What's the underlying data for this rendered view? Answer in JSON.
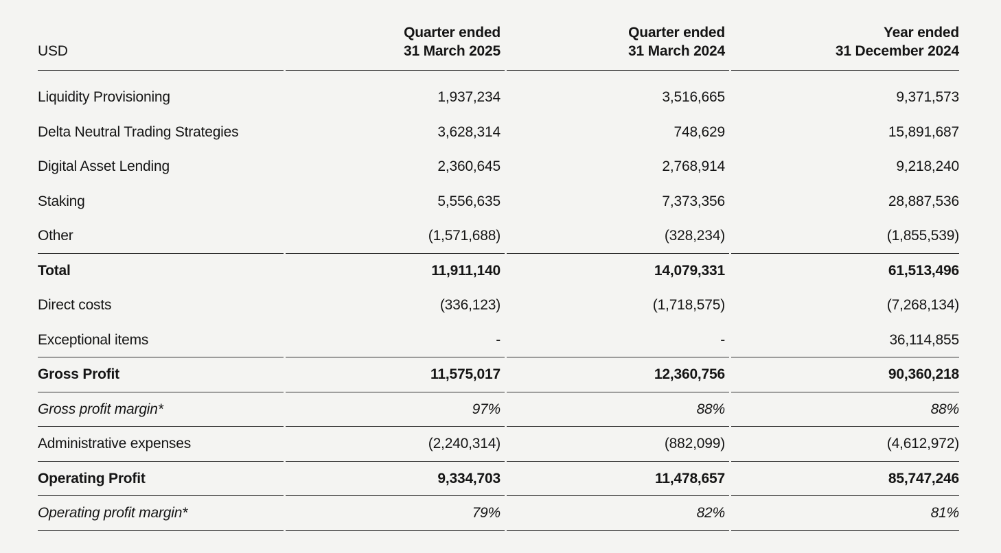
{
  "page": {
    "background_color": "#f4f4f2",
    "text_color": "#151515",
    "rule_color": "#2e2e2e"
  },
  "table": {
    "unit_label": "USD",
    "columns": [
      {
        "line1": "Quarter ended",
        "line2": "31 March 2025"
      },
      {
        "line1": "Quarter ended",
        "line2": "31 March 2024"
      },
      {
        "line1": "Year ended",
        "line2": "31 December 2024"
      }
    ],
    "rows": [
      {
        "label": "Liquidity Provisioning",
        "values": [
          "1,937,234",
          "3,516,665",
          "9,371,573"
        ],
        "style": "normal",
        "rule_below": false
      },
      {
        "label": "Delta Neutral Trading Strategies",
        "values": [
          "3,628,314",
          "748,629",
          "15,891,687"
        ],
        "style": "normal",
        "rule_below": false
      },
      {
        "label": "Digital Asset Lending",
        "values": [
          "2,360,645",
          "2,768,914",
          "9,218,240"
        ],
        "style": "normal",
        "rule_below": false
      },
      {
        "label": "Staking",
        "values": [
          "5,556,635",
          "7,373,356",
          "28,887,536"
        ],
        "style": "normal",
        "rule_below": false
      },
      {
        "label": "Other",
        "values": [
          "(1,571,688)",
          "(328,234)",
          "(1,855,539)"
        ],
        "style": "normal",
        "rule_below": true
      },
      {
        "label": "Total",
        "values": [
          "11,911,140",
          "14,079,331",
          "61,513,496"
        ],
        "style": "bold",
        "rule_below": false
      },
      {
        "label": "Direct costs",
        "values": [
          "(336,123)",
          "(1,718,575)",
          "(7,268,134)"
        ],
        "style": "normal",
        "rule_below": false
      },
      {
        "label": "Exceptional items",
        "values": [
          "-",
          "-",
          "36,114,855"
        ],
        "style": "normal",
        "rule_below": true
      },
      {
        "label": "Gross Profit",
        "values": [
          "11,575,017",
          "12,360,756",
          "90,360,218"
        ],
        "style": "bold",
        "rule_below": true
      },
      {
        "label": "Gross profit margin*",
        "values": [
          "97%",
          "88%",
          "88%"
        ],
        "style": "italic",
        "rule_below": true
      },
      {
        "label": "Administrative expenses",
        "values": [
          "(2,240,314)",
          "(882,099)",
          "(4,612,972)"
        ],
        "style": "normal",
        "rule_below": true
      },
      {
        "label": "Operating Profit",
        "values": [
          "9,334,703",
          "11,478,657",
          "85,747,246"
        ],
        "style": "bold",
        "rule_below": true
      },
      {
        "label": "Operating profit margin*",
        "values": [
          "79%",
          "82%",
          "81%"
        ],
        "style": "italic",
        "rule_below": true
      }
    ]
  }
}
